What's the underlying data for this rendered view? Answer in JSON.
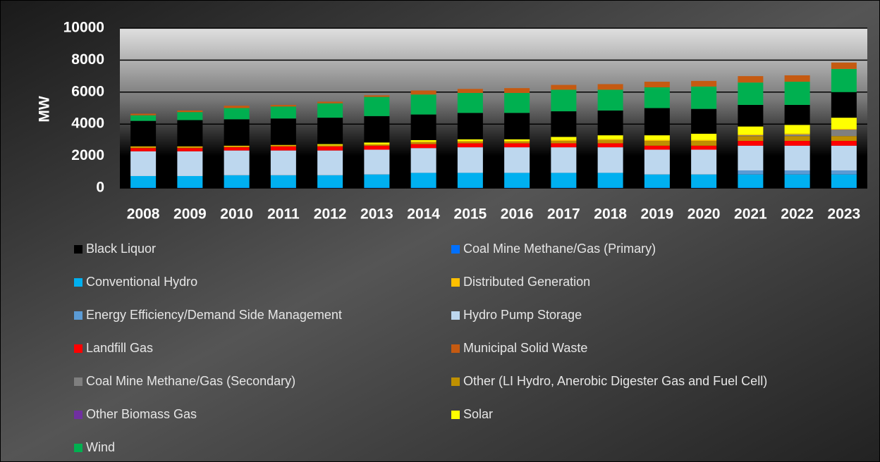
{
  "chart_data": {
    "type": "bar",
    "stacked": true,
    "y_label": "MW",
    "categories": [
      "2008",
      "2009",
      "2010",
      "2011",
      "2012",
      "2013",
      "2014",
      "2015",
      "2016",
      "2017",
      "2018",
      "2019",
      "2020",
      "2021",
      "2022",
      "2023"
    ],
    "ylim": [
      0,
      10000
    ],
    "yticks": [
      0,
      2000,
      4000,
      6000,
      8000,
      10000
    ],
    "grid": true,
    "series": [
      {
        "name": "Black Liquor",
        "color": "#000000",
        "values": [
          1600,
          1650,
          1650,
          1650,
          1650,
          1650,
          1600,
          1650,
          1650,
          1600,
          1550,
          1700,
          1550,
          1350,
          1250,
          1600
        ]
      },
      {
        "name": "Coal Mine Methane/Gas (Primary)",
        "color": "#0070ff",
        "values": [
          20,
          20,
          20,
          20,
          20,
          20,
          20,
          20,
          20,
          20,
          20,
          20,
          20,
          20,
          20,
          20
        ]
      },
      {
        "name": "Conventional Hydro",
        "color": "#00b0f0",
        "values": [
          730,
          730,
          780,
          780,
          780,
          830,
          930,
          930,
          930,
          930,
          930,
          830,
          830,
          830,
          830,
          830
        ]
      },
      {
        "name": "Distributed Generation",
        "color": "#ffc000",
        "values": [
          50,
          50,
          50,
          50,
          50,
          50,
          50,
          50,
          50,
          50,
          50,
          50,
          50,
          50,
          50,
          50
        ]
      },
      {
        "name": "Energy Efficiency/Demand Side Management",
        "color": "#5b9bd5",
        "values": [
          0,
          0,
          0,
          0,
          0,
          0,
          0,
          0,
          0,
          0,
          0,
          0,
          0,
          250,
          250,
          250
        ]
      },
      {
        "name": "Hydro Pump Storage",
        "color": "#bdd7ee",
        "values": [
          1550,
          1550,
          1550,
          1550,
          1550,
          1550,
          1550,
          1600,
          1600,
          1600,
          1600,
          1550,
          1550,
          1550,
          1550,
          1550
        ]
      },
      {
        "name": "Landfill Gas",
        "color": "#ff0000",
        "values": [
          200,
          200,
          200,
          250,
          250,
          250,
          250,
          250,
          250,
          250,
          250,
          250,
          250,
          300,
          300,
          300
        ]
      },
      {
        "name": "Municipal Solid Waste",
        "color": "#c55a11",
        "values": [
          100,
          100,
          150,
          100,
          100,
          100,
          250,
          250,
          300,
          300,
          350,
          350,
          350,
          400,
          400,
          400
        ]
      },
      {
        "name": "Coal Mine Methane/Gas (Secondary)",
        "color": "#7f7f7f",
        "values": [
          0,
          0,
          0,
          0,
          0,
          0,
          0,
          0,
          0,
          0,
          0,
          0,
          0,
          50,
          100,
          400
        ]
      },
      {
        "name": "Other (LI Hydro, Anerobic Digester Gas and Fuel Cell)",
        "color": "#bf9000",
        "values": [
          50,
          50,
          50,
          50,
          50,
          50,
          100,
          100,
          100,
          150,
          200,
          300,
          300,
          300,
          300,
          300
        ]
      },
      {
        "name": "Other Biomass Gas",
        "color": "#7030a0",
        "values": [
          0,
          0,
          0,
          0,
          0,
          0,
          0,
          0,
          0,
          0,
          0,
          0,
          0,
          0,
          0,
          0
        ]
      },
      {
        "name": "Solar",
        "color": "#ffff00",
        "values": [
          0,
          0,
          0,
          0,
          50,
          100,
          100,
          100,
          100,
          200,
          250,
          300,
          400,
          500,
          550,
          700
        ]
      },
      {
        "name": "Wind",
        "color": "#00b050",
        "values": [
          350,
          500,
          700,
          750,
          900,
          1200,
          1250,
          1250,
          1250,
          1350,
          1300,
          1300,
          1400,
          1400,
          1450,
          1450
        ]
      }
    ]
  }
}
